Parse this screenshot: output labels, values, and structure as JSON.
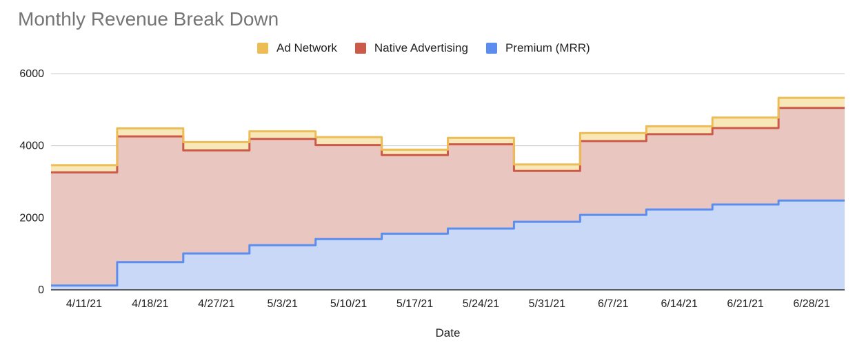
{
  "chart_data": {
    "type": "area",
    "title": "Monthly Revenue Break Down",
    "xlabel": "Date",
    "ylabel": "",
    "ylim": [
      0,
      6000
    ],
    "yticks": [
      0,
      2000,
      4000,
      6000
    ],
    "stacked": true,
    "stepped": true,
    "grid": true,
    "legend_position": "top",
    "categories": [
      "4/11/21",
      "4/18/21",
      "4/27/21",
      "5/3/21",
      "5/10/21",
      "5/17/21",
      "5/24/21",
      "5/31/21",
      "6/7/21",
      "6/14/21",
      "6/21/21",
      "6/28/21"
    ],
    "series": [
      {
        "name": "Premium (MRR)",
        "color": "#5b8def",
        "fill": "#c9d8f6",
        "values": [
          120,
          770,
          1010,
          1240,
          1410,
          1560,
          1700,
          1890,
          2080,
          2230,
          2370,
          2480
        ]
      },
      {
        "name": "Native Advertising",
        "color": "#cc5a48",
        "fill": "#eac6c1",
        "values": [
          3140,
          3490,
          2860,
          2950,
          2610,
          2180,
          2340,
          1410,
          2050,
          2090,
          2120,
          2570
        ]
      },
      {
        "name": "Ad Network",
        "color": "#ecbd55",
        "fill": "#f8e7b8",
        "values": [
          200,
          220,
          230,
          210,
          220,
          150,
          180,
          180,
          220,
          220,
          290,
          280
        ]
      }
    ]
  }
}
